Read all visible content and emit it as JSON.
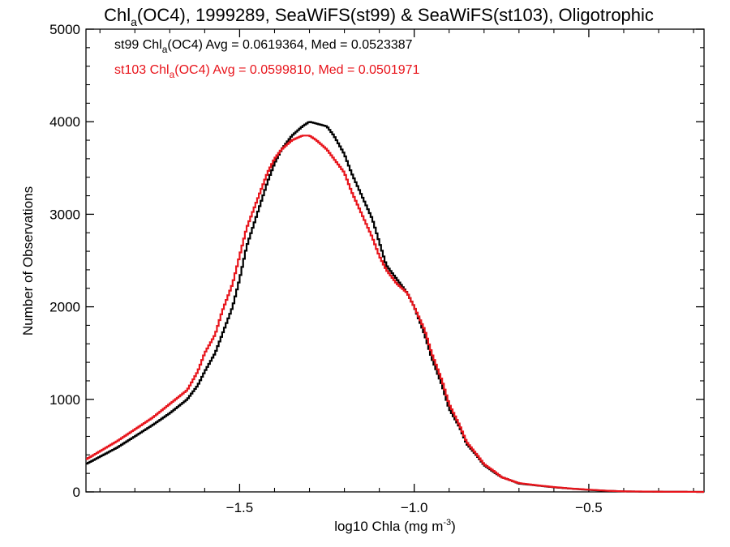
{
  "chart_data": {
    "type": "line",
    "title": {
      "prefix": "Chl",
      "sub": "a",
      "suffix": "(OC4), 1999289, SeaWiFS(st99) & SeaWiFS(st103), Oligotrophic"
    },
    "xlabel": {
      "main": "log10 Chla (mg m",
      "sup": "-3",
      "end": ")"
    },
    "ylabel": "Number of Observations",
    "xlim": [
      -1.94,
      -0.17
    ],
    "ylim": [
      0,
      5000
    ],
    "xticks": [
      -1.5,
      -1.0,
      -0.5
    ],
    "xtick_labels": [
      "−1.5",
      "−1.0",
      "−0.5"
    ],
    "yticks": [
      0,
      1000,
      2000,
      3000,
      4000,
      5000
    ],
    "ytick_labels": [
      "0",
      "1000",
      "2000",
      "3000",
      "4000",
      "5000"
    ],
    "legend": [
      {
        "pre": "st99 Chl",
        "sub": "a",
        "post": "(OC4) Avg = 0.0619364, Med = 0.0523387",
        "color": "#000000"
      },
      {
        "pre": "st103 Chl",
        "sub": "a",
        "post": "(OC4) Avg = 0.0599810, Med = 0.0501971",
        "color": "#e8141b"
      }
    ],
    "series": [
      {
        "color": "#000000",
        "x": [
          -1.94,
          -1.85,
          -1.75,
          -1.7,
          -1.65,
          -1.62,
          -1.6,
          -1.57,
          -1.55,
          -1.52,
          -1.5,
          -1.48,
          -1.45,
          -1.42,
          -1.4,
          -1.38,
          -1.35,
          -1.32,
          -1.3,
          -1.28,
          -1.25,
          -1.23,
          -1.2,
          -1.18,
          -1.15,
          -1.12,
          -1.1,
          -1.08,
          -1.05,
          -1.02,
          -1.0,
          -0.97,
          -0.95,
          -0.92,
          -0.9,
          -0.87,
          -0.85,
          -0.82,
          -0.8,
          -0.77,
          -0.75,
          -0.72,
          -0.7,
          -0.65,
          -0.6,
          -0.55,
          -0.5,
          -0.45,
          -0.4,
          -0.3,
          -0.17
        ],
        "y": [
          300,
          480,
          720,
          850,
          1000,
          1150,
          1300,
          1500,
          1700,
          2000,
          2300,
          2650,
          3000,
          3350,
          3550,
          3700,
          3850,
          3950,
          4000,
          3980,
          3950,
          3850,
          3650,
          3450,
          3200,
          2950,
          2700,
          2450,
          2300,
          2150,
          2000,
          1700,
          1450,
          1150,
          900,
          700,
          520,
          390,
          290,
          210,
          160,
          120,
          90,
          70,
          50,
          35,
          22,
          12,
          5,
          2,
          0
        ]
      },
      {
        "color": "#e8141b",
        "x": [
          -1.94,
          -1.85,
          -1.75,
          -1.7,
          -1.65,
          -1.62,
          -1.6,
          -1.57,
          -1.55,
          -1.52,
          -1.5,
          -1.48,
          -1.45,
          -1.42,
          -1.4,
          -1.38,
          -1.35,
          -1.32,
          -1.3,
          -1.28,
          -1.25,
          -1.23,
          -1.2,
          -1.18,
          -1.15,
          -1.12,
          -1.1,
          -1.08,
          -1.05,
          -1.02,
          -1.0,
          -0.97,
          -0.95,
          -0.92,
          -0.9,
          -0.87,
          -0.85,
          -0.82,
          -0.8,
          -0.77,
          -0.75,
          -0.72,
          -0.7,
          -0.65,
          -0.6,
          -0.55,
          -0.5,
          -0.45,
          -0.4,
          -0.3,
          -0.17
        ],
        "y": [
          350,
          550,
          800,
          950,
          1100,
          1300,
          1500,
          1700,
          1950,
          2250,
          2550,
          2850,
          3150,
          3450,
          3600,
          3700,
          3800,
          3850,
          3850,
          3800,
          3700,
          3600,
          3450,
          3250,
          3000,
          2750,
          2550,
          2400,
          2250,
          2150,
          2000,
          1750,
          1500,
          1200,
          950,
          720,
          540,
          400,
          300,
          220,
          160,
          120,
          95,
          72,
          52,
          36,
          24,
          13,
          6,
          2,
          0
        ]
      }
    ]
  }
}
